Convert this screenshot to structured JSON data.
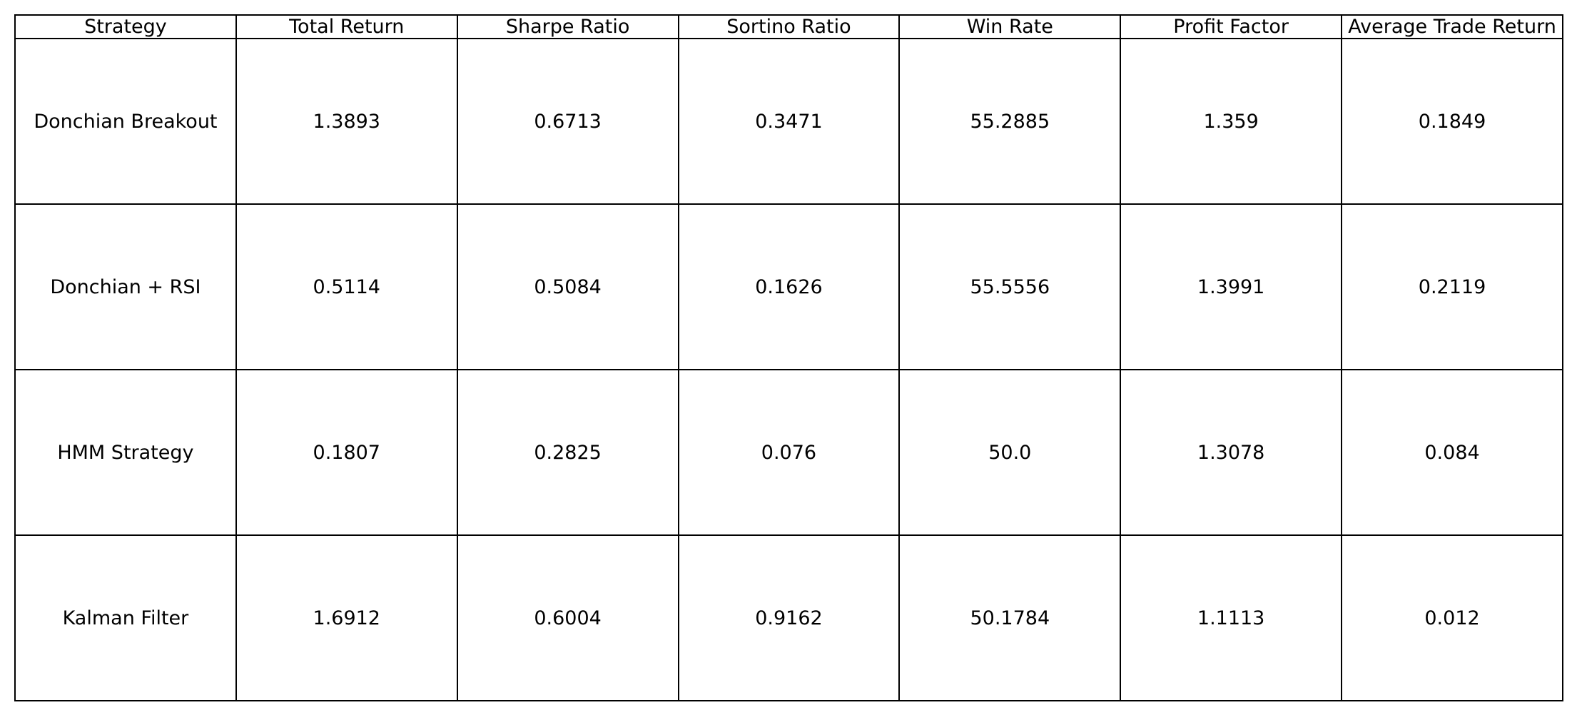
{
  "chart_data": {
    "type": "table",
    "columns": [
      "Strategy",
      "Total Return",
      "Sharpe Ratio",
      "Sortino Ratio",
      "Win Rate",
      "Profit Factor",
      "Average Trade Return"
    ],
    "rows": [
      [
        "Donchian Breakout",
        "1.3893",
        "0.6713",
        "0.3471",
        "55.2885",
        "1.359",
        "0.1849"
      ],
      [
        "Donchian + RSI",
        "0.5114",
        "0.5084",
        "0.1626",
        "55.5556",
        "1.3991",
        "0.2119"
      ],
      [
        "HMM Strategy",
        "0.1807",
        "0.2825",
        "0.076",
        "50.0",
        "1.3078",
        "0.084"
      ],
      [
        "Kalman Filter",
        "1.6912",
        "0.6004",
        "0.9162",
        "50.1784",
        "1.1113",
        "0.012"
      ]
    ]
  }
}
